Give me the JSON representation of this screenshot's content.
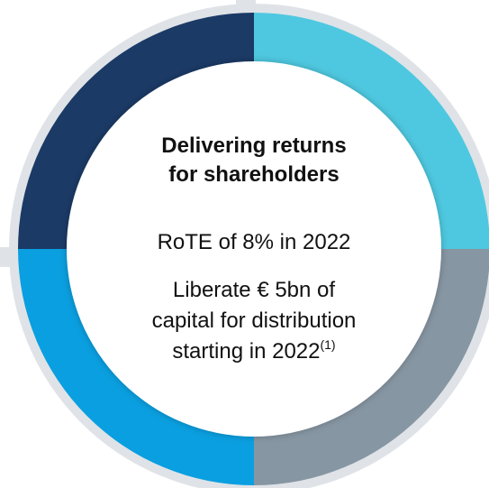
{
  "center": {
    "title_lines": [
      "Delivering returns",
      "for shareholders"
    ],
    "items": [
      {
        "lines": [
          "RoTE of 8% in 2022"
        ]
      },
      {
        "lines": [
          "Liberate € 5bn of",
          "capital for distribution",
          "starting in 2022"
        ],
        "note": "(1)"
      }
    ]
  }
}
